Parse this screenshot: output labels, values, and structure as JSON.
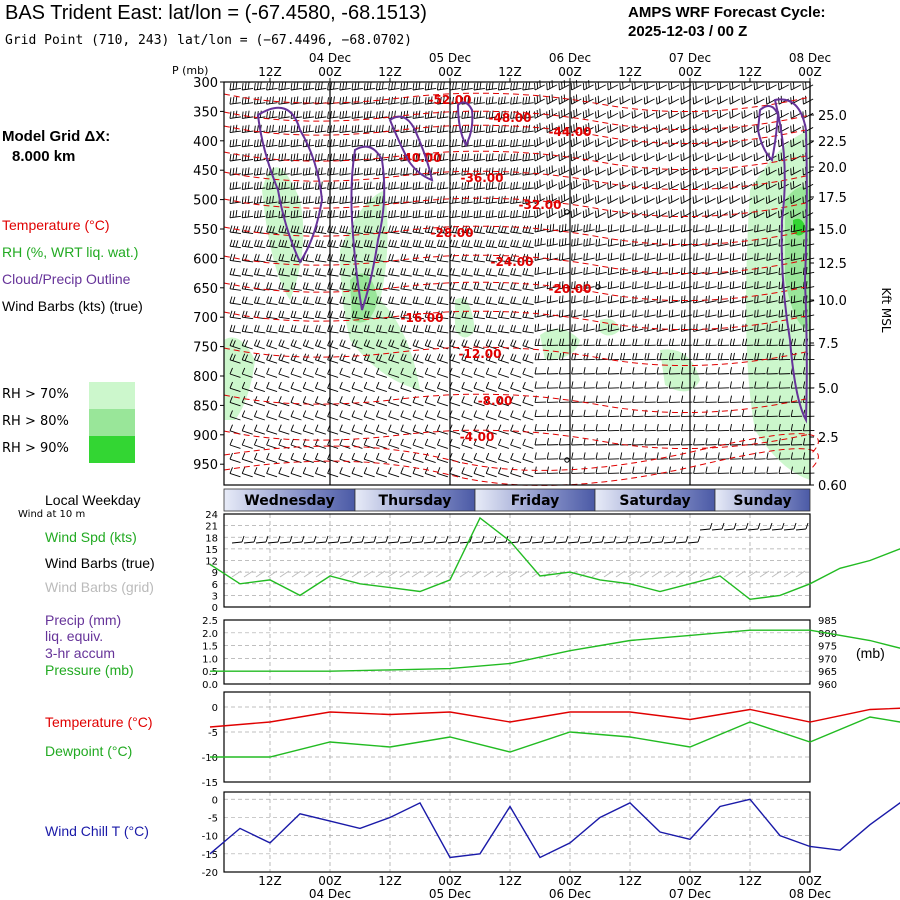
{
  "header": {
    "title": "BAS Trident East:  lat/lon = (-67.4580, -68.1513)",
    "grid_point": "Grid Point (710, 243) lat/lon = (−67.4496, −68.0702)",
    "cycle_line1": "AMPS WRF Forecast Cycle:",
    "cycle_line2": "2025-12-03 / 00  Z"
  },
  "model_grid": {
    "label": "Model Grid ΔX:",
    "value": "8.000 km"
  },
  "left_legend": {
    "temperature": "Temperature (°C)",
    "rh": "RH (%, WRT liq. wat.)",
    "cloud": "Cloud/Precip Outline",
    "wind": "Wind Barbs (kts) (true)"
  },
  "rh_legend": [
    {
      "label": "RH > 70%",
      "color": "#ccf7cc"
    },
    {
      "label": "RH > 80%",
      "color": "#99e699"
    },
    {
      "label": "RH > 90%",
      "color": "#33d633"
    }
  ],
  "colors": {
    "temp": "#e00000",
    "dew": "#22bb22",
    "cloud": "#663399",
    "chill": "#1a1aa8",
    "grid": "#aaaaaa"
  },
  "time_axis": {
    "top_dates": [
      "04 Dec",
      "05 Dec",
      "06 Dec",
      "07 Dec",
      "08 Dec"
    ],
    "hour_labels": [
      "12Z",
      "00Z",
      "12Z",
      "00Z",
      "12Z",
      "00Z",
      "12Z",
      "00Z",
      "12Z",
      "00Z"
    ]
  },
  "weekdays": {
    "header": "Local Weekday",
    "days": [
      "Wednesday",
      "Thursday",
      "Friday",
      "Saturday",
      "Sunday"
    ]
  },
  "sounding": {
    "p_unit_label": "P (mb)",
    "kft_label": "Kft MSL",
    "pressure_levels": [
      300,
      350,
      400,
      450,
      500,
      550,
      600,
      650,
      700,
      750,
      800,
      850,
      900,
      950
    ],
    "kft_ticks": [
      "25.0",
      "22.5",
      "20.0",
      "17.5",
      "15.0",
      "12.5",
      "10.0",
      "7.5",
      "5.0",
      "2.5",
      "0.60"
    ],
    "isotherm_labels": [
      "-52.00",
      "-48.00",
      "-44.00",
      "-40.00",
      "-36.00",
      "-32.00",
      "-28.00",
      "-24.00",
      "-20.00",
      "-16.00",
      "-12.00",
      "-8.00",
      "-4.00"
    ]
  },
  "panels": {
    "wind_at": "Wind at 10 m",
    "wind_spd_label": "Wind Spd (kts)",
    "wind_barbs_true": "Wind Barbs (true)",
    "wind_barbs_grid": "Wind Barbs (grid)",
    "precip_label1": "Precip (mm)",
    "precip_label2": "liq. equiv.",
    "precip_label3": "3-hr accum",
    "pressure_label": "Pressure (mb)",
    "mb_unit": "(mb)",
    "temp_label": "Temperature (°C)",
    "dew_label": "Dewpoint (°C)",
    "chill_label": "Wind Chill T (°C)"
  },
  "chart_data": [
    {
      "type": "line",
      "title": "Wind Spd (kts)",
      "x_hours": [
        0,
        6,
        12,
        18,
        24,
        30,
        36,
        42,
        48,
        54,
        60,
        66,
        72,
        78,
        84,
        90,
        96,
        102,
        108,
        114,
        120,
        126,
        132,
        138,
        144
      ],
      "values": [
        11,
        6,
        7,
        3,
        8,
        6,
        5,
        4,
        7,
        23,
        17,
        8,
        9,
        7,
        6,
        4,
        6,
        8,
        2,
        3,
        6,
        10,
        12,
        15,
        5
      ],
      "ylim": [
        0,
        24
      ],
      "yticks": [
        "0",
        "3",
        "6",
        "9",
        "12",
        "15",
        "18",
        "21",
        "24"
      ]
    },
    {
      "type": "line",
      "title": "Pressure (mb)",
      "x_hours": [
        0,
        12,
        24,
        36,
        48,
        60,
        72,
        84,
        96,
        108,
        120,
        132,
        144
      ],
      "values": [
        965,
        965,
        965,
        965.5,
        966,
        968,
        973,
        977,
        979,
        981,
        981,
        977,
        971
      ],
      "ylim": [
        960,
        985
      ],
      "yticks_left": [
        "0.0",
        "0.5",
        "1.0",
        "1.5",
        "2.0",
        "2.5"
      ],
      "yticks_right": [
        "960",
        "965",
        "970",
        "975",
        "980",
        "985"
      ]
    },
    {
      "type": "line",
      "title": "Temperature / Dewpoint (°C)",
      "x_hours": [
        0,
        12,
        24,
        36,
        48,
        60,
        72,
        84,
        96,
        108,
        120,
        132,
        144
      ],
      "series": [
        {
          "name": "Temperature",
          "values": [
            -4,
            -3,
            -1,
            -1.5,
            -1,
            -3,
            -1,
            -1,
            -2.5,
            -0.5,
            -3,
            -0.5,
            0
          ]
        },
        {
          "name": "Dewpoint",
          "values": [
            -10,
            -10,
            -7,
            -8,
            -6,
            -9,
            -5,
            -6,
            -8,
            -3,
            -7,
            -2,
            -4
          ]
        }
      ],
      "ylim": [
        -15,
        3
      ],
      "yticks": [
        "0",
        "-5",
        "-10",
        "-15"
      ]
    },
    {
      "type": "line",
      "title": "Wind Chill T (°C)",
      "x_hours": [
        0,
        6,
        12,
        18,
        24,
        30,
        36,
        42,
        48,
        54,
        60,
        66,
        72,
        78,
        84,
        90,
        96,
        102,
        108,
        114,
        120,
        126,
        132,
        138,
        144
      ],
      "values": [
        -15,
        -8,
        -12,
        -4,
        -6,
        -8,
        -5,
        -1,
        -16,
        -15,
        -2,
        -16,
        -12,
        -5,
        -1,
        -9,
        -11,
        -2,
        0,
        -10,
        -13,
        -14,
        -7,
        -1,
        -15
      ],
      "ylim": [
        -20,
        2
      ],
      "yticks": [
        "0",
        "-5",
        "-10",
        "-15",
        "-20"
      ]
    }
  ]
}
